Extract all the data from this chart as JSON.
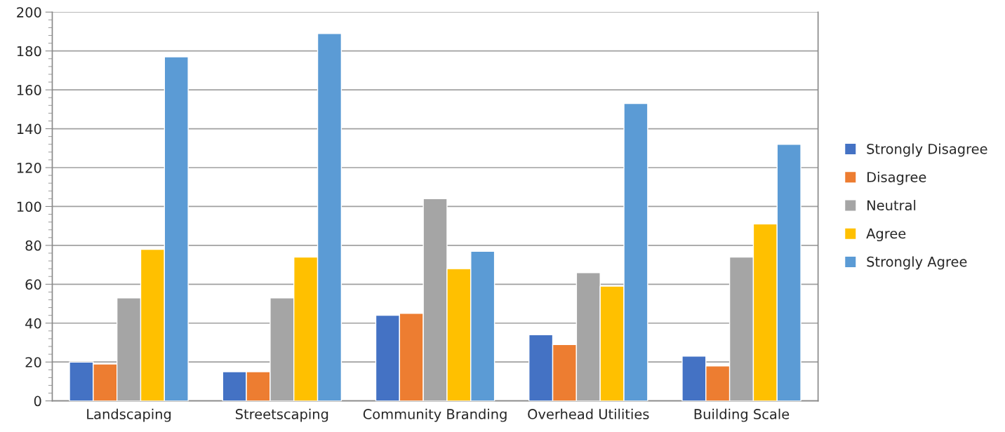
{
  "chart_data": {
    "type": "bar",
    "categories": [
      "Landscaping",
      "Streetscaping",
      "Community Branding",
      "Overhead Utilities",
      "Building Scale"
    ],
    "series": [
      {
        "name": "Strongly Disagree",
        "color": "#4472c4",
        "values": [
          20,
          15,
          44,
          34,
          23
        ]
      },
      {
        "name": "Disagree",
        "color": "#ed7d31",
        "values": [
          19,
          15,
          45,
          29,
          18
        ]
      },
      {
        "name": "Neutral",
        "color": "#a5a5a5",
        "values": [
          53,
          53,
          104,
          66,
          74
        ]
      },
      {
        "name": "Agree",
        "color": "#ffc000",
        "values": [
          78,
          74,
          68,
          59,
          91
        ]
      },
      {
        "name": "Strongly Agree",
        "color": "#5b9bd5",
        "values": [
          177,
          189,
          77,
          153,
          132
        ]
      }
    ],
    "ylim": [
      0,
      200
    ],
    "yticks": [
      0,
      20,
      40,
      60,
      80,
      100,
      120,
      140,
      160,
      180,
      200
    ],
    "grid": "y",
    "legend": "right"
  }
}
